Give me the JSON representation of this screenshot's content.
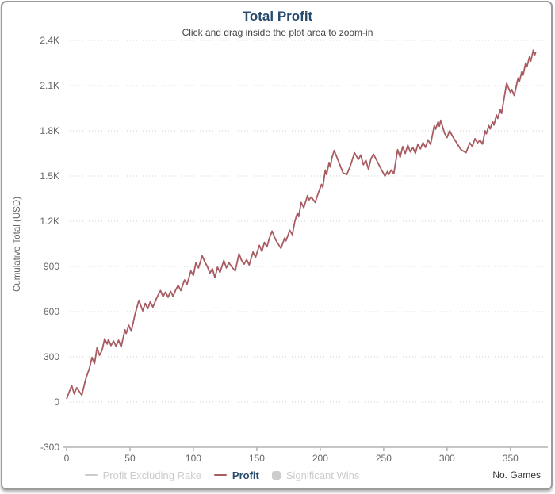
{
  "header": {
    "title": "Total Profit",
    "subtitle": "Click and drag inside the plot area to zoom-in"
  },
  "colors": {
    "title": "#274b6d",
    "subtitle": "#434343",
    "axis_label": "#666666",
    "axis_title": "#333333",
    "series": "#a85b61",
    "grid": "#cccccc",
    "axis_line": "#b3b3b3",
    "disabled": "#cccccc",
    "card_border": "#9c9c9c"
  },
  "y_axis": {
    "title": "Cumulative Total (USD)",
    "ticks": [
      {
        "value": -300,
        "label": "-300"
      },
      {
        "value": 0,
        "label": "0"
      },
      {
        "value": 300,
        "label": "300"
      },
      {
        "value": 600,
        "label": "600"
      },
      {
        "value": 900,
        "label": "900"
      },
      {
        "value": 1200,
        "label": "1.2K"
      },
      {
        "value": 1500,
        "label": "1.5K"
      },
      {
        "value": 1800,
        "label": "1.8K"
      },
      {
        "value": 2100,
        "label": "2.1K"
      },
      {
        "value": 2400,
        "label": "2.4K"
      }
    ]
  },
  "x_axis": {
    "title": "No. Games",
    "ticks": [
      {
        "value": 0,
        "label": "0"
      },
      {
        "value": 50,
        "label": "50"
      },
      {
        "value": 100,
        "label": "100"
      },
      {
        "value": 150,
        "label": "150"
      },
      {
        "value": 200,
        "label": "200"
      },
      {
        "value": 250,
        "label": "250"
      },
      {
        "value": 300,
        "label": "300"
      },
      {
        "value": 350,
        "label": "350"
      }
    ]
  },
  "legend": {
    "items": [
      {
        "label": "Profit Excluding Rake",
        "swatch": "line",
        "color": "#cccccc",
        "text_color": "#cccccc",
        "active": false
      },
      {
        "label": "Profit",
        "swatch": "line",
        "color": "#a85b61",
        "text_color": "#274b6d",
        "active": true
      },
      {
        "label": "Significant Wins",
        "swatch": "square",
        "color": "#cccccc",
        "text_color": "#cccccc",
        "active": false
      }
    ]
  },
  "chart_data": {
    "type": "line",
    "title": "Total Profit",
    "subtitle": "Click and drag inside the plot area to zoom-in",
    "xlabel": "No. Games",
    "ylabel": "Cumulative Total (USD)",
    "xlim": [
      0,
      377
    ],
    "ylim": [
      -300,
      2400
    ],
    "grid": "horizontal-dotted",
    "legend_position": "bottom",
    "series": [
      {
        "name": "Profit",
        "color": "#a85b61",
        "points": [
          [
            0,
            20
          ],
          [
            2,
            65
          ],
          [
            4,
            110
          ],
          [
            6,
            55
          ],
          [
            8,
            95
          ],
          [
            10,
            70
          ],
          [
            12,
            45
          ],
          [
            15,
            150
          ],
          [
            18,
            225
          ],
          [
            20,
            295
          ],
          [
            22,
            255
          ],
          [
            24,
            360
          ],
          [
            26,
            310
          ],
          [
            28,
            345
          ],
          [
            30,
            420
          ],
          [
            32,
            385
          ],
          [
            33,
            415
          ],
          [
            35,
            375
          ],
          [
            37,
            405
          ],
          [
            39,
            370
          ],
          [
            41,
            410
          ],
          [
            43,
            365
          ],
          [
            46,
            480
          ],
          [
            47,
            455
          ],
          [
            49,
            510
          ],
          [
            51,
            470
          ],
          [
            54,
            585
          ],
          [
            57,
            675
          ],
          [
            60,
            605
          ],
          [
            62,
            655
          ],
          [
            64,
            620
          ],
          [
            66,
            665
          ],
          [
            68,
            630
          ],
          [
            71,
            690
          ],
          [
            74,
            740
          ],
          [
            76,
            700
          ],
          [
            78,
            730
          ],
          [
            80,
            695
          ],
          [
            82,
            735
          ],
          [
            84,
            700
          ],
          [
            86,
            745
          ],
          [
            88,
            775
          ],
          [
            90,
            740
          ],
          [
            93,
            810
          ],
          [
            95,
            780
          ],
          [
            98,
            870
          ],
          [
            100,
            840
          ],
          [
            102,
            925
          ],
          [
            104,
            890
          ],
          [
            107,
            970
          ],
          [
            109,
            930
          ],
          [
            111,
            900
          ],
          [
            113,
            855
          ],
          [
            115,
            885
          ],
          [
            117,
            825
          ],
          [
            119,
            895
          ],
          [
            121,
            860
          ],
          [
            124,
            940
          ],
          [
            126,
            890
          ],
          [
            128,
            925
          ],
          [
            130,
            900
          ],
          [
            133,
            870
          ],
          [
            136,
            985
          ],
          [
            138,
            940
          ],
          [
            140,
            915
          ],
          [
            142,
            945
          ],
          [
            144,
            910
          ],
          [
            147,
            995
          ],
          [
            149,
            960
          ],
          [
            152,
            1040
          ],
          [
            154,
            1000
          ],
          [
            156,
            1060
          ],
          [
            158,
            1030
          ],
          [
            160,
            1090
          ],
          [
            162,
            1135
          ],
          [
            165,
            1075
          ],
          [
            169,
            1020
          ],
          [
            172,
            1090
          ],
          [
            173,
            1070
          ],
          [
            176,
            1140
          ],
          [
            178,
            1110
          ],
          [
            180,
            1200
          ],
          [
            182,
            1255
          ],
          [
            183,
            1230
          ],
          [
            185,
            1325
          ],
          [
            187,
            1290
          ],
          [
            190,
            1370
          ],
          [
            191,
            1340
          ],
          [
            193,
            1360
          ],
          [
            196,
            1325
          ],
          [
            199,
            1400
          ],
          [
            201,
            1445
          ],
          [
            202,
            1425
          ],
          [
            204,
            1540
          ],
          [
            205,
            1510
          ],
          [
            207,
            1590
          ],
          [
            208,
            1560
          ],
          [
            209,
            1615
          ],
          [
            211,
            1670
          ],
          [
            215,
            1585
          ],
          [
            218,
            1520
          ],
          [
            221,
            1510
          ],
          [
            224,
            1575
          ],
          [
            227,
            1655
          ],
          [
            230,
            1610
          ],
          [
            232,
            1640
          ],
          [
            234,
            1575
          ],
          [
            236,
            1605
          ],
          [
            238,
            1545
          ],
          [
            240,
            1615
          ],
          [
            242,
            1645
          ],
          [
            245,
            1595
          ],
          [
            248,
            1545
          ],
          [
            251,
            1500
          ],
          [
            253,
            1530
          ],
          [
            254,
            1510
          ],
          [
            256,
            1540
          ],
          [
            258,
            1515
          ],
          [
            261,
            1675
          ],
          [
            263,
            1625
          ],
          [
            265,
            1695
          ],
          [
            267,
            1650
          ],
          [
            269,
            1705
          ],
          [
            271,
            1660
          ],
          [
            273,
            1690
          ],
          [
            275,
            1650
          ],
          [
            277,
            1712
          ],
          [
            279,
            1680
          ],
          [
            281,
            1722
          ],
          [
            283,
            1690
          ],
          [
            285,
            1740
          ],
          [
            287,
            1710
          ],
          [
            290,
            1835
          ],
          [
            291,
            1810
          ],
          [
            293,
            1860
          ],
          [
            294,
            1830
          ],
          [
            295,
            1870
          ],
          [
            298,
            1785
          ],
          [
            300,
            1755
          ],
          [
            302,
            1800
          ],
          [
            305,
            1755
          ],
          [
            308,
            1715
          ],
          [
            311,
            1675
          ],
          [
            315,
            1655
          ],
          [
            318,
            1720
          ],
          [
            320,
            1695
          ],
          [
            322,
            1748
          ],
          [
            324,
            1720
          ],
          [
            326,
            1738
          ],
          [
            328,
            1712
          ],
          [
            330,
            1800
          ],
          [
            331,
            1780
          ],
          [
            333,
            1835
          ],
          [
            334,
            1812
          ],
          [
            336,
            1860
          ],
          [
            337,
            1838
          ],
          [
            339,
            1905
          ],
          [
            340,
            1882
          ],
          [
            342,
            1940
          ],
          [
            343,
            1915
          ],
          [
            347,
            2115
          ],
          [
            350,
            2055
          ],
          [
            351,
            2075
          ],
          [
            353,
            2035
          ],
          [
            356,
            2150
          ],
          [
            357,
            2125
          ],
          [
            359,
            2195
          ],
          [
            360,
            2170
          ],
          [
            362,
            2250
          ],
          [
            363,
            2225
          ],
          [
            365,
            2290
          ],
          [
            366,
            2262
          ],
          [
            368,
            2335
          ],
          [
            369,
            2300
          ],
          [
            370,
            2325
          ]
        ]
      }
    ]
  }
}
